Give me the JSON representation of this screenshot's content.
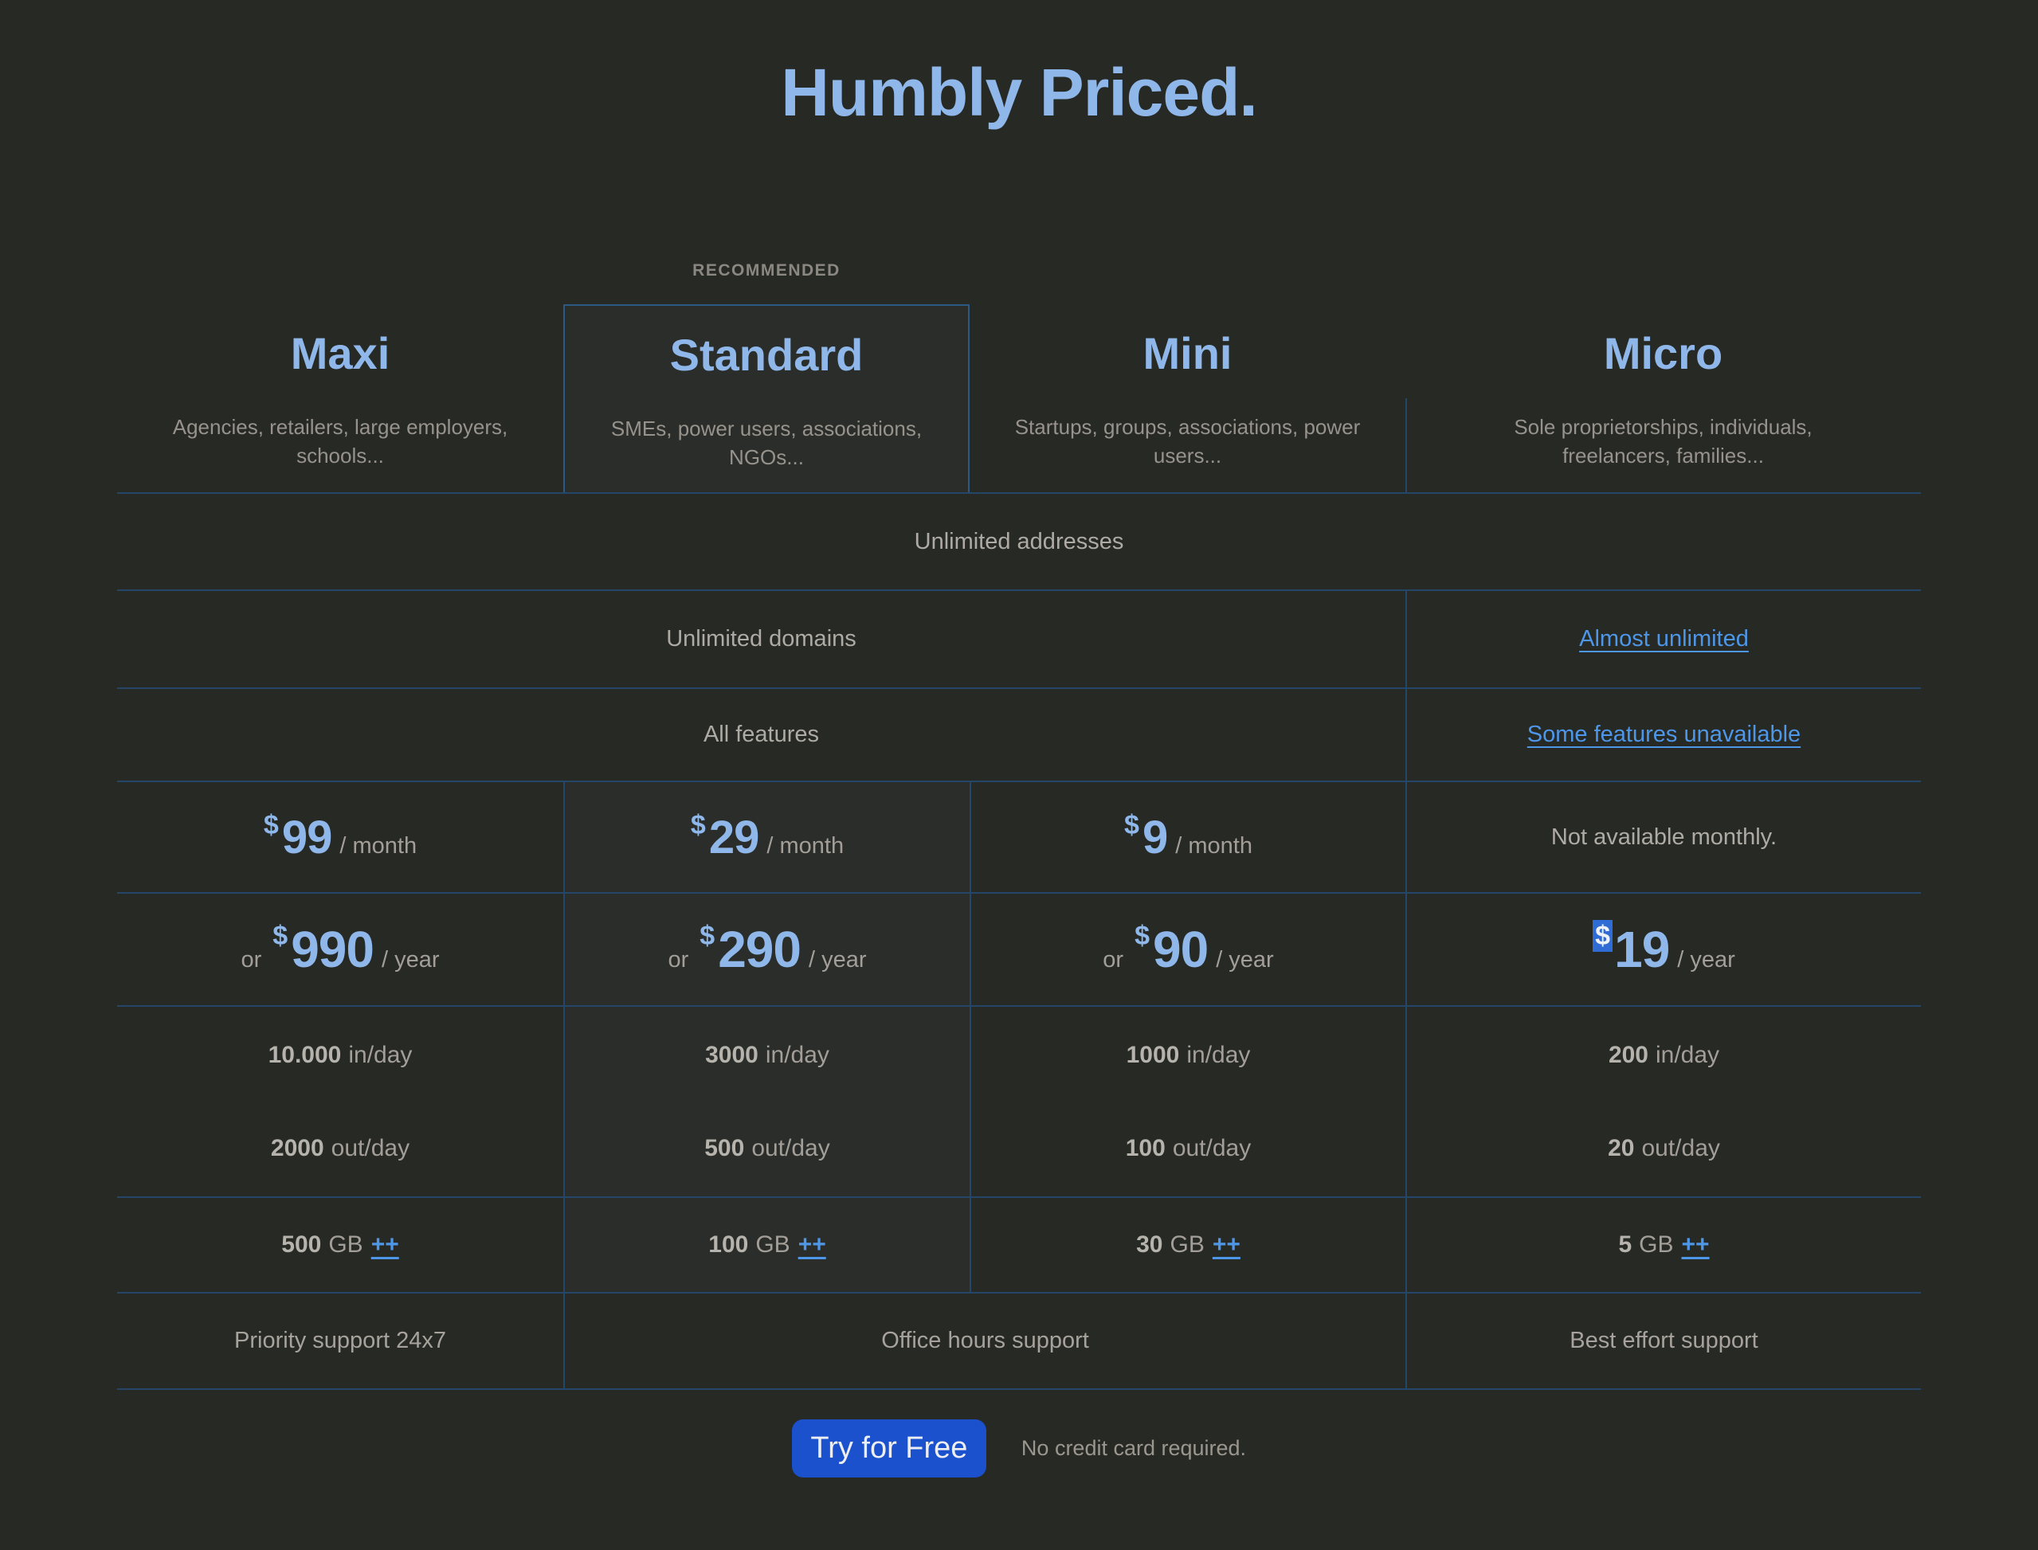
{
  "title": "Humbly Priced.",
  "recommended_label": "RECOMMENDED",
  "colors": {
    "background": "#272925",
    "accent_blue": "#8fb7ea",
    "link_blue": "#4e96e8",
    "divider_blue": "#234669",
    "button_blue": "#1b51cd",
    "selection_blue": "#2f6cd6"
  },
  "plans": [
    {
      "name": "Maxi",
      "audience": "Agencies, retailers, large employers, schools...",
      "monthly_currency": "$",
      "monthly_amount": "99",
      "monthly_suffix": "/ month",
      "yearly_prefix": "or",
      "yearly_currency": "$",
      "yearly_amount": "990",
      "yearly_suffix": "/ year",
      "inbound": "10.000",
      "inbound_unit": "in/day",
      "outbound": "2000",
      "outbound_unit": "out/day",
      "storage_amount": "500",
      "storage_unit": "GB",
      "storage_link": "++",
      "support": "Priority support 24x7"
    },
    {
      "name": "Standard",
      "audience": "SMEs, power users, associations, NGOs...",
      "monthly_currency": "$",
      "monthly_amount": "29",
      "monthly_suffix": "/ month",
      "yearly_prefix": "or",
      "yearly_currency": "$",
      "yearly_amount": "290",
      "yearly_suffix": "/ year",
      "inbound": "3000",
      "inbound_unit": "in/day",
      "outbound": "500",
      "outbound_unit": "out/day",
      "storage_amount": "100",
      "storage_unit": "GB",
      "storage_link": "++"
    },
    {
      "name": "Mini",
      "audience": "Startups, groups, associations, power users...",
      "monthly_currency": "$",
      "monthly_amount": "9",
      "monthly_suffix": "/ month",
      "yearly_prefix": "or",
      "yearly_currency": "$",
      "yearly_amount": "90",
      "yearly_suffix": "/ year",
      "inbound": "1000",
      "inbound_unit": "in/day",
      "outbound": "100",
      "outbound_unit": "out/day",
      "storage_amount": "30",
      "storage_unit": "GB",
      "storage_link": "++"
    },
    {
      "name": "Micro",
      "audience": "Sole proprietorships, individuals, freelancers, families...",
      "monthly_note": "Not available monthly.",
      "yearly_currency": "$",
      "yearly_amount": "19",
      "yearly_suffix": "/ year",
      "inbound": "200",
      "inbound_unit": "in/day",
      "outbound": "20",
      "outbound_unit": "out/day",
      "storage_amount": "5",
      "storage_unit": "GB",
      "storage_link": "++",
      "support": "Best effort support"
    }
  ],
  "rows": {
    "addresses": "Unlimited addresses",
    "domains": "Unlimited domains",
    "domains_micro": "Almost unlimited",
    "features": "All features",
    "features_micro": "Some features unavailable",
    "support_middle": "Office hours support"
  },
  "footer": {
    "cta": "Try for Free",
    "note": "No credit card required."
  }
}
